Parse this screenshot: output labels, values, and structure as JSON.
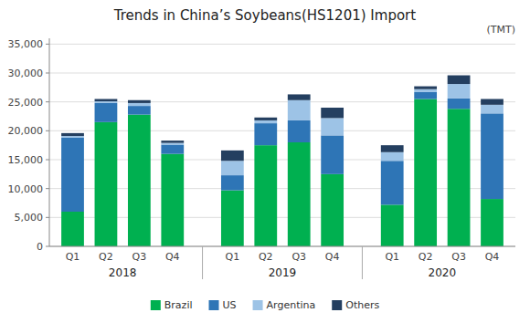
{
  "chart_data": {
    "type": "bar",
    "stacked": true,
    "title": "Trends in China’s Soybeans(HS1201) Import",
    "ylabel": "(TMT)",
    "categories": [
      "Q1",
      "Q2",
      "Q3",
      "Q4",
      "Q1",
      "Q2",
      "Q3",
      "Q4",
      "Q1",
      "Q2",
      "Q3",
      "Q4"
    ],
    "annotations": [
      "2018",
      "2019",
      "2020"
    ],
    "series": [
      {
        "name": "Brazil",
        "color": "#00B050",
        "values": [
          6000,
          21500,
          22800,
          16000,
          9700,
          17500,
          18000,
          12500,
          7200,
          25500,
          23800,
          8200
        ]
      },
      {
        "name": "US",
        "color": "#2E75B6",
        "values": [
          12800,
          3300,
          1500,
          1600,
          2600,
          3800,
          3800,
          6700,
          7600,
          1200,
          1800,
          14800
        ]
      },
      {
        "name": "Argentina",
        "color": "#9DC3E6",
        "values": [
          300,
          300,
          500,
          300,
          2500,
          500,
          3500,
          3000,
          1500,
          500,
          2500,
          1500
        ]
      },
      {
        "name": "Others",
        "color": "#243F60",
        "values": [
          500,
          400,
          500,
          400,
          1800,
          500,
          1000,
          1800,
          1200,
          500,
          1500,
          1000
        ]
      }
    ],
    "ylim": [
      0,
      36000
    ],
    "yticks": [
      0,
      {
        "value": 5000,
        "label": "5,000"
      },
      {
        "value": 10000,
        "label": "10,000"
      },
      {
        "value": 15000,
        "label": "15,000"
      },
      {
        "value": 20000,
        "label": "20,000"
      },
      {
        "value": 25000,
        "label": "25,000"
      },
      {
        "value": 30000,
        "label": "30,000"
      },
      {
        "value": 35000,
        "label": "35,000"
      }
    ],
    "grid": true,
    "legend": "bottom"
  }
}
